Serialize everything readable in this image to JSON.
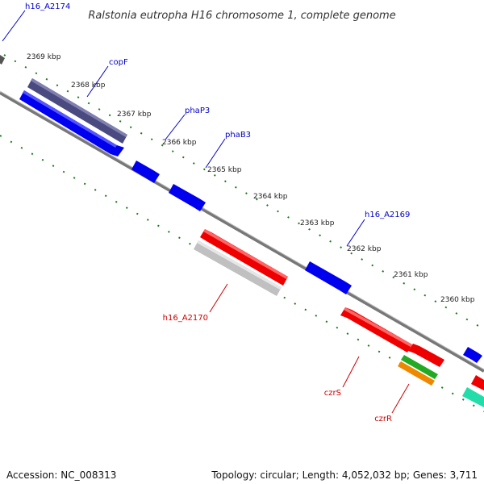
{
  "title": "Ralstonia eutropha H16 chromosome 1, complete genome",
  "footer": {
    "accession": "Accession: NC_008313",
    "topology": "Topology: circular; Length: 4,052,032 bp; Genes: 3,711"
  },
  "colors": {
    "forward_gene": "#0000ee",
    "reverse_gene": "#ee0000",
    "dark_gene": "#4a4a80",
    "gray_gene": "#c0c0c0",
    "green_gene": "#22aa22",
    "orange_gene": "#ee8800",
    "teal_gene": "#22ddaa",
    "tick_green": "#1a7a1a",
    "label_blue": "#0000cc",
    "label_red": "#cc0000",
    "backbone": "#777777"
  },
  "ticks": [
    "2369 kbp",
    "2368 kbp",
    "2367 kbp",
    "2366 kbp",
    "2365 kbp",
    "2364 kbp",
    "2363 kbp",
    "2362 kbp",
    "2361 kbp",
    "2360 kbp"
  ],
  "gene_labels": {
    "h16_A2174": "h16_A2174",
    "copF": "copF",
    "phaP3": "phaP3",
    "phaB3": "phaB3",
    "h16_A2169": "h16_A2169",
    "h16_A2170": "h16_A2170",
    "czrS": "czrS",
    "czrR": "czrR"
  }
}
